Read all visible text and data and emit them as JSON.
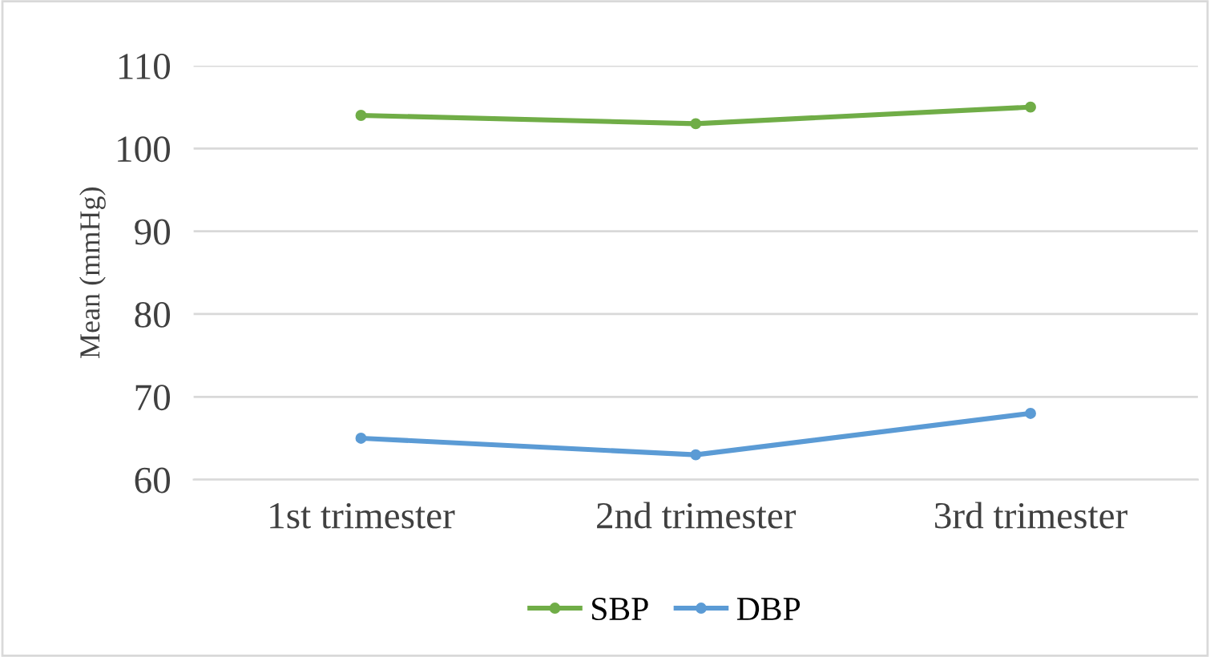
{
  "chart_data": {
    "type": "line",
    "ylabel": "Mean (mmHg)",
    "categories": [
      "1st trimester",
      "2nd trimester",
      "3rd trimester"
    ],
    "series": [
      {
        "name": "SBP",
        "color": "#70ad47",
        "values": [
          104,
          103,
          105
        ]
      },
      {
        "name": "DBP",
        "color": "#5b9bd5",
        "values": [
          65,
          63,
          68
        ]
      }
    ],
    "ylim": [
      60,
      110
    ],
    "yticks": [
      60,
      70,
      80,
      90,
      100,
      110
    ],
    "grid": "y",
    "legend": "bottom",
    "marker": "circle",
    "line_style": "solid"
  }
}
